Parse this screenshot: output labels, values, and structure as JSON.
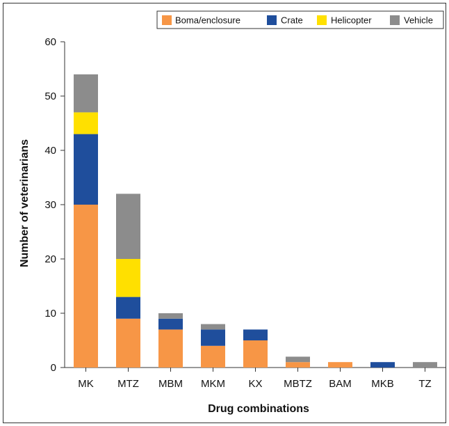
{
  "chart_data": {
    "type": "bar",
    "stacked": true,
    "title": "",
    "xlabel": "Drug combinations",
    "ylabel": "Number of veterinarians",
    "ylim": [
      0,
      60
    ],
    "yticks": [
      0,
      10,
      20,
      30,
      40,
      50,
      60
    ],
    "grid": false,
    "legend_position": "top-right",
    "categories": [
      "MK",
      "MTZ",
      "MBM",
      "MKM",
      "KX",
      "MBTZ",
      "BAM",
      "MKB",
      "TZ"
    ],
    "series": [
      {
        "name": "Boma/enclosure",
        "color": "#F79646",
        "values": [
          30,
          9,
          7,
          4,
          5,
          1,
          1,
          0,
          0
        ]
      },
      {
        "name": "Crate",
        "color": "#1F4E9C",
        "values": [
          13,
          4,
          2,
          3,
          2,
          0,
          0,
          1,
          0
        ]
      },
      {
        "name": "Helicopter",
        "color": "#FFE000",
        "values": [
          4,
          7,
          0,
          0,
          0,
          0,
          0,
          0,
          0
        ]
      },
      {
        "name": "Vehicle",
        "color": "#8C8C8C",
        "values": [
          7,
          12,
          1,
          1,
          0,
          1,
          0,
          0,
          1
        ]
      }
    ]
  }
}
